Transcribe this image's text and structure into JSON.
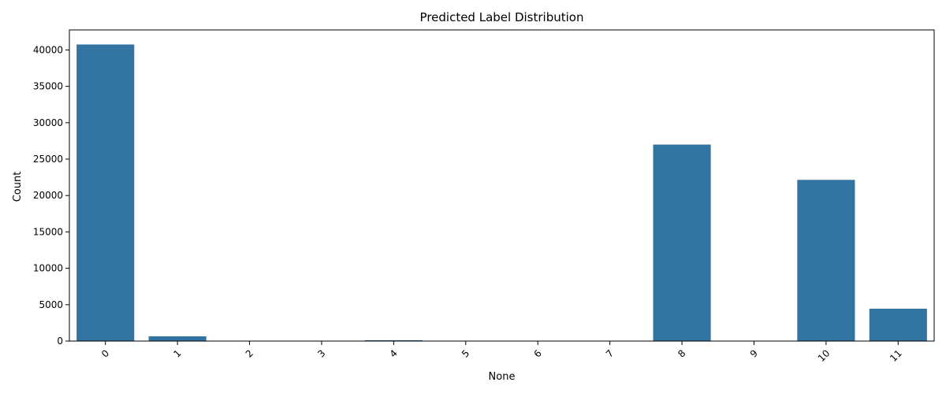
{
  "chart_data": {
    "type": "bar",
    "title": "Predicted Label Distribution",
    "xlabel": "None",
    "ylabel": "Count",
    "categories": [
      "0",
      "1",
      "2",
      "3",
      "4",
      "5",
      "6",
      "7",
      "8",
      "9",
      "10",
      "11"
    ],
    "values": [
      40750,
      650,
      10,
      10,
      120,
      10,
      10,
      10,
      27000,
      10,
      22150,
      4450
    ],
    "ylim": [
      0,
      42750
    ],
    "yticks": [
      0,
      5000,
      10000,
      15000,
      20000,
      25000,
      30000,
      35000,
      40000
    ],
    "xtick_rotation": 45,
    "grid": false,
    "bar_color": "#3274a1"
  }
}
